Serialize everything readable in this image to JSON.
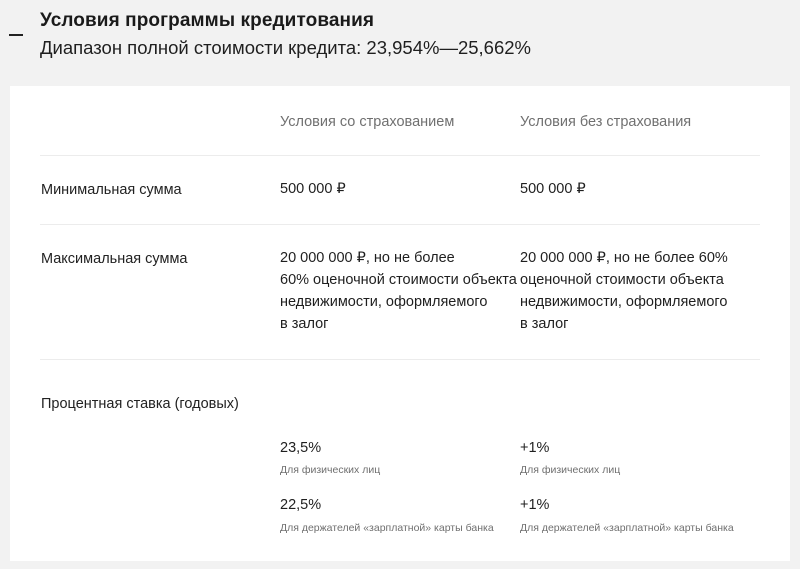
{
  "header": {
    "title": "Условия программы кредитования",
    "subtitle": "Диапазон полной стоимости кредита: 23,954%—25,662%"
  },
  "table": {
    "columns": [
      "Условия со страхованием",
      "Условия без страхования"
    ],
    "rows": {
      "min": {
        "label": "Минимальная сумма",
        "with": "500 000 ₽",
        "without": "500 000 ₽"
      },
      "max": {
        "label": "Максимальная сумма",
        "with": [
          "20 000 000 ₽, но не более",
          "60% оценочной стоимости объекта",
          "недвижимости, оформляемого",
          "в залог"
        ],
        "without": [
          "20 000 000 ₽, но не более 60%",
          "оценочной стоимости объекта",
          "недвижимости, оформляемого",
          "в залог"
        ]
      },
      "rate": {
        "label": "Процентная ставка (годовых)",
        "with": [
          {
            "value": "23,5%",
            "note": "Для физических лиц"
          },
          {
            "value": "22,5%",
            "note": "Для держателей «зарплатной» карты банка"
          }
        ],
        "without": [
          {
            "value": "+1%",
            "note": "Для физических лиц"
          },
          {
            "value": "+1%",
            "note": "Для держателей «зарплатной» карты банка"
          }
        ]
      }
    }
  }
}
